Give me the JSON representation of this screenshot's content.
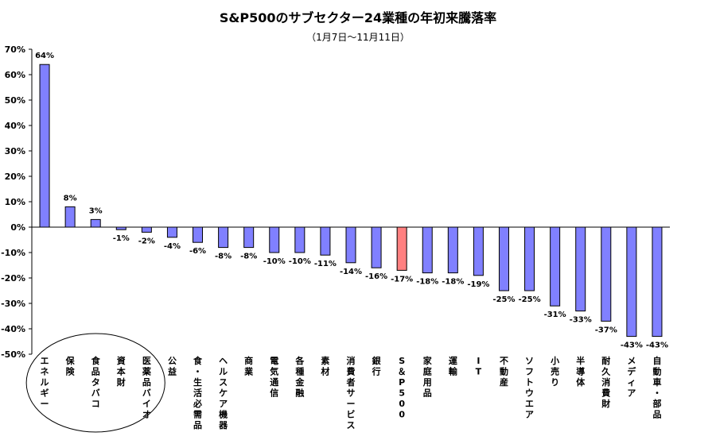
{
  "chart_data": {
    "type": "bar",
    "title": "S&P500のサブセクター24業種の年初来騰落率",
    "subtitle": "（1月7日～11月11日）",
    "xlabel": "",
    "ylabel": "",
    "ylim": [
      -50,
      70
    ],
    "yticks": [
      70,
      60,
      50,
      40,
      30,
      20,
      10,
      0,
      -10,
      -20,
      -30,
      -40,
      -50
    ],
    "tick_suffix": "%",
    "grid": false,
    "legend": "none",
    "categories": [
      "エネルギー",
      "保険",
      "食品タバコ",
      "資本財",
      "医薬品バイオ",
      "公益",
      "食・生活必需品",
      "ヘルスケア機器",
      "商業",
      "電気通信",
      "各種金融",
      "素材",
      "消費者サービス",
      "銀行",
      "S＆P500",
      "家庭用品",
      "運輸",
      "IT",
      "不動産",
      "ソフトウエア",
      "小売り",
      "半導体",
      "耐久消費財",
      "メディア",
      "自動車・部品"
    ],
    "values": [
      64,
      8,
      3,
      -1,
      -2,
      -4,
      -6,
      -8,
      -8,
      -10,
      -10,
      -11,
      -14,
      -16,
      -17,
      -18,
      -18,
      -19,
      -25,
      -25,
      -31,
      -33,
      -37,
      -43,
      -43
    ],
    "data_labels": [
      "64%",
      "8%",
      "3%",
      "-1%",
      "-2%",
      "-4%",
      "-6%",
      "-8%",
      "-8%",
      "-10%",
      "-10%",
      "-11%",
      "-14%",
      "-16%",
      "-17%",
      "-18%",
      "-18%",
      "-19%",
      "-25%",
      "-25%",
      "-31%",
      "-33%",
      "-37%",
      "-43%",
      "-43%"
    ],
    "colors": {
      "bar": "#8080ff",
      "highlight": "#ff8080",
      "stroke": "#000000"
    },
    "highlight_category": "S＆P500",
    "annotations": [
      {
        "type": "ellipse",
        "around": [
          "保険",
          "食品タバコ",
          "資本財"
        ]
      }
    ]
  }
}
